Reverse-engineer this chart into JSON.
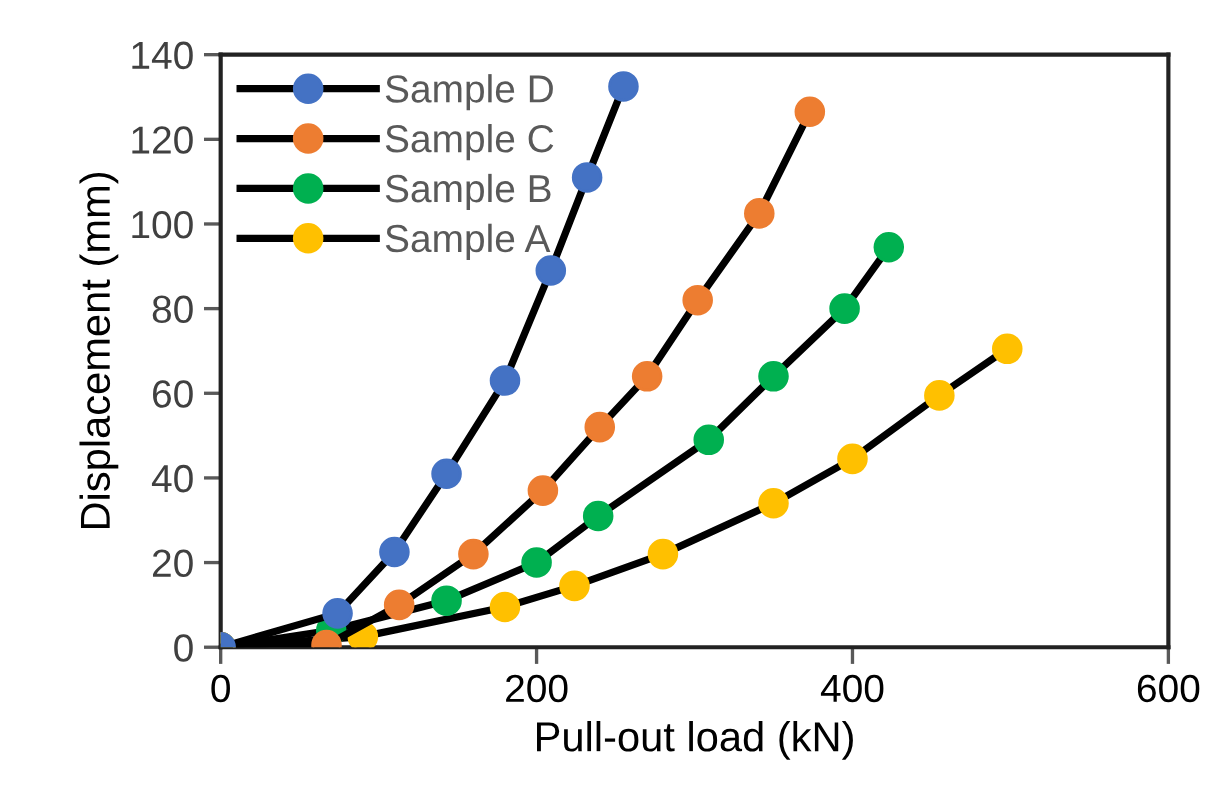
{
  "chart_data": {
    "type": "line",
    "xlabel": "Pull-out load (kN)",
    "ylabel": "Displacement (mm)",
    "xlim": [
      0,
      600
    ],
    "ylim": [
      0,
      140
    ],
    "xticks": [
      0,
      200,
      400,
      600
    ],
    "yticks": [
      0,
      20,
      40,
      60,
      80,
      100,
      120,
      140
    ],
    "grid": false,
    "legend": "top left",
    "marker": "circle",
    "line_style": "solid",
    "series": [
      {
        "name": "Sample D",
        "color": "#4472c4",
        "x": [
          0,
          74,
          110,
          143,
          180,
          209,
          232,
          255
        ],
        "values": [
          0,
          8,
          22.5,
          41,
          63,
          89,
          111,
          132.5
        ]
      },
      {
        "name": "Sample C",
        "color": "#ed7d31",
        "x": [
          0,
          67,
          113,
          160,
          204,
          240,
          270,
          302,
          341,
          373
        ],
        "values": [
          0,
          0.5,
          10,
          22,
          37,
          52,
          64,
          82,
          102.5,
          126.5
        ]
      },
      {
        "name": "Sample B",
        "color": "#00b050",
        "x": [
          0,
          70,
          143,
          200,
          239,
          309,
          350,
          395,
          423
        ],
        "values": [
          0,
          4,
          11,
          20,
          31,
          49,
          64,
          80,
          94.5
        ]
      },
      {
        "name": "Sample A",
        "color": "#ffc000",
        "x": [
          0,
          90,
          180,
          224,
          280,
          350,
          400,
          455,
          498
        ],
        "values": [
          0,
          2.5,
          9.5,
          14.5,
          22,
          34,
          44.5,
          59.5,
          70.5
        ]
      }
    ]
  }
}
